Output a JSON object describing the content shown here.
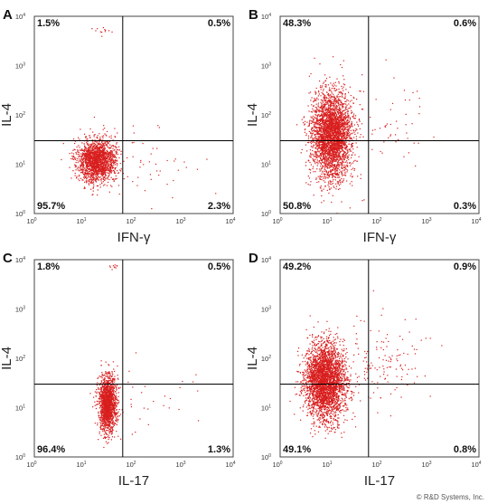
{
  "figure": {
    "copyright": "© R&D Systems, Inc."
  },
  "chart_data": [
    {
      "type": "scatter",
      "panel": "A",
      "xlabel": "IFN-γ",
      "ylabel": "IL-4",
      "xscale": "log",
      "yscale": "log",
      "xlim": [
        1,
        10000
      ],
      "ylim": [
        1,
        10000
      ],
      "ticks": [
        {
          "base": "10",
          "exp": "0"
        },
        {
          "base": "10",
          "exp": "1"
        },
        {
          "base": "10",
          "exp": "2"
        },
        {
          "base": "10",
          "exp": "3"
        },
        {
          "base": "10",
          "exp": "4"
        }
      ],
      "gate": {
        "x": 60,
        "y": 30
      },
      "quadrants": {
        "upper_left": "1.5%",
        "upper_right": "0.5%",
        "lower_left": "95.7%",
        "lower_right": "2.3%"
      },
      "point_color": "#d81e1e",
      "clusters": [
        {
          "cx": 18,
          "cy": 12,
          "sx": 0.2,
          "sy": 0.22,
          "n": 1800
        },
        {
          "cx": 200,
          "cy": 10,
          "sx": 0.5,
          "sy": 0.35,
          "n": 45
        },
        {
          "cx": 25,
          "cy": 5000,
          "sx": 0.12,
          "sy": 0.04,
          "n": 12
        }
      ]
    },
    {
      "type": "scatter",
      "panel": "B",
      "xlabel": "IFN-γ",
      "ylabel": "IL-4",
      "xscale": "log",
      "yscale": "log",
      "xlim": [
        1,
        10000
      ],
      "ylim": [
        1,
        10000
      ],
      "ticks": [
        {
          "base": "10",
          "exp": "0"
        },
        {
          "base": "10",
          "exp": "1"
        },
        {
          "base": "10",
          "exp": "2"
        },
        {
          "base": "10",
          "exp": "3"
        },
        {
          "base": "10",
          "exp": "4"
        }
      ],
      "gate": {
        "x": 60,
        "y": 30
      },
      "quadrants": {
        "upper_left": "48.3%",
        "upper_right": "0.6%",
        "lower_left": "50.8%",
        "lower_right": "0.3%"
      },
      "point_color": "#d81e1e",
      "clusters": [
        {
          "cx": 11,
          "cy": 40,
          "sx": 0.2,
          "sy": 0.45,
          "n": 3200
        },
        {
          "cx": 200,
          "cy": 80,
          "sx": 0.5,
          "sy": 0.5,
          "n": 50
        }
      ]
    },
    {
      "type": "scatter",
      "panel": "C",
      "xlabel": "IL-17",
      "ylabel": "IL-4",
      "xscale": "log",
      "yscale": "log",
      "xlim": [
        1,
        10000
      ],
      "ylim": [
        1,
        10000
      ],
      "ticks": [
        {
          "base": "10",
          "exp": "0"
        },
        {
          "base": "10",
          "exp": "1"
        },
        {
          "base": "10",
          "exp": "2"
        },
        {
          "base": "10",
          "exp": "3"
        },
        {
          "base": "10",
          "exp": "4"
        }
      ],
      "gate": {
        "x": 60,
        "y": 30
      },
      "quadrants": {
        "upper_left": "1.8%",
        "upper_right": "0.5%",
        "lower_left": "96.4%",
        "lower_right": "1.3%"
      },
      "point_color": "#d81e1e",
      "clusters": [
        {
          "cx": 30,
          "cy": 12,
          "sx": 0.09,
          "sy": 0.28,
          "n": 1600
        },
        {
          "cx": 250,
          "cy": 15,
          "sx": 0.5,
          "sy": 0.45,
          "n": 30
        },
        {
          "cx": 40,
          "cy": 7000,
          "sx": 0.1,
          "sy": 0.03,
          "n": 10
        }
      ]
    },
    {
      "type": "scatter",
      "panel": "D",
      "xlabel": "IL-17",
      "ylabel": "IL-4",
      "xscale": "log",
      "yscale": "log",
      "xlim": [
        1,
        10000
      ],
      "ylim": [
        1,
        10000
      ],
      "ticks": [
        {
          "base": "10",
          "exp": "0"
        },
        {
          "base": "10",
          "exp": "1"
        },
        {
          "base": "10",
          "exp": "2"
        },
        {
          "base": "10",
          "exp": "3"
        },
        {
          "base": "10",
          "exp": "4"
        }
      ],
      "gate": {
        "x": 60,
        "y": 30
      },
      "quadrants": {
        "upper_left": "49.2%",
        "upper_right": "0.9%",
        "lower_left": "49.1%",
        "lower_right": "0.8%"
      },
      "point_color": "#d81e1e",
      "clusters": [
        {
          "cx": 8,
          "cy": 35,
          "sx": 0.2,
          "sy": 0.38,
          "n": 3200
        },
        {
          "cx": 120,
          "cy": 80,
          "sx": 0.45,
          "sy": 0.45,
          "n": 150
        }
      ]
    }
  ]
}
